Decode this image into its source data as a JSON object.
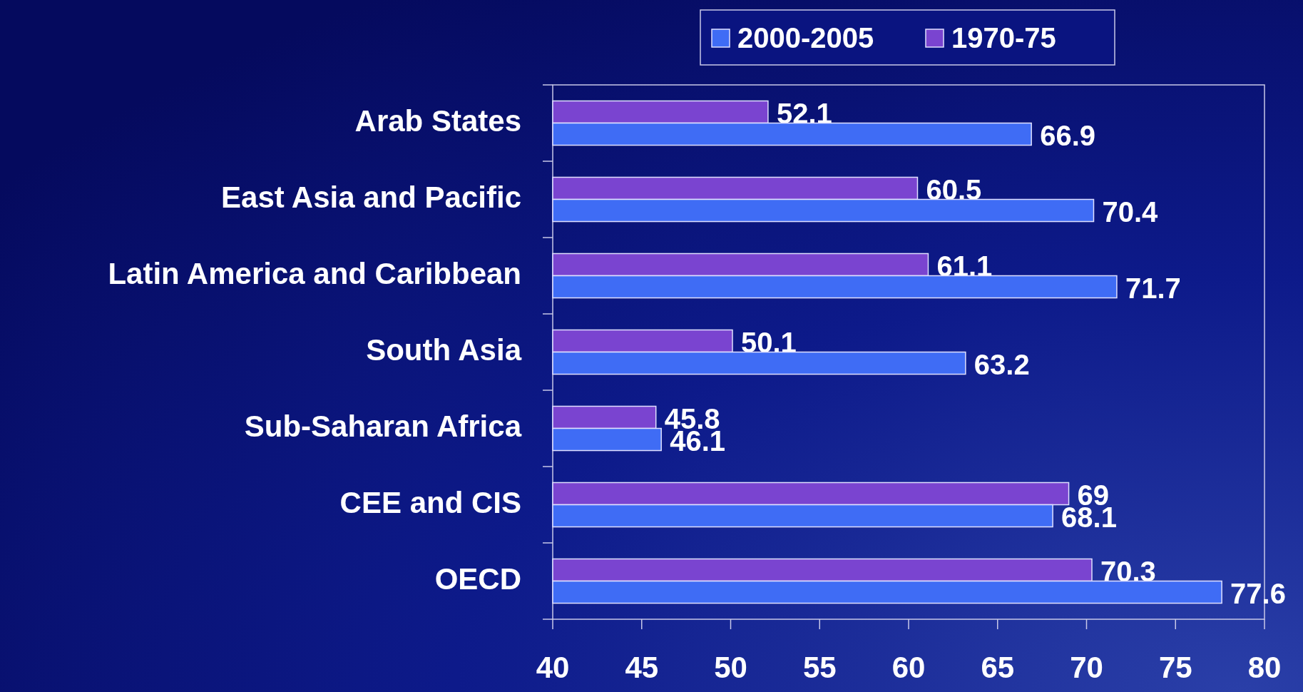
{
  "chart_data": {
    "type": "bar",
    "orientation": "horizontal",
    "categories": [
      "Arab States",
      "East Asia and Pacific",
      "Latin America and Caribbean",
      "South Asia",
      "Sub-Saharan Africa",
      "CEE and CIS",
      "OECD"
    ],
    "series": [
      {
        "name": "2000-2005",
        "color": "#3f6cf5",
        "values": [
          66.9,
          70.4,
          71.7,
          63.2,
          46.1,
          68.1,
          77.6
        ]
      },
      {
        "name": "1970-75",
        "color": "#7a44d0",
        "values": [
          52.1,
          60.5,
          61.1,
          50.1,
          45.8,
          69,
          70.3
        ]
      }
    ],
    "xlim": [
      40,
      80
    ],
    "xticks": [
      40,
      45,
      50,
      55,
      60,
      65,
      70,
      75,
      80
    ],
    "data_labels": true,
    "legend": "top right",
    "grid": false
  }
}
